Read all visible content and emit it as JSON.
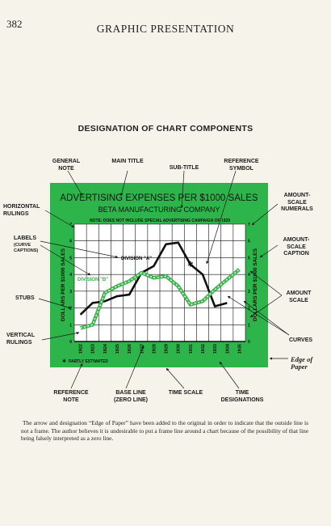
{
  "page": {
    "number": "382",
    "header": "GRAPHIC PRESENTATION",
    "diagram_title": "DESIGNATION OF CHART COMPONENTS",
    "caption": "The arrow and designation “Edge of Paper” have been added to the original in order to indicate that the outside line is not a frame. The author believes it is undesirable to put a frame line around a chart because of the possibility of that line being falsely interpreted as a zero line."
  },
  "colors": {
    "panel_green": "#2db54b",
    "curve_a": "#111111",
    "curve_b": "#3fb34f",
    "paper": "#ffffff"
  },
  "callouts": {
    "general_note": "GENERAL NOTE",
    "main_title": "MAIN TITLE",
    "sub_title": "SUB-TITLE",
    "reference_symbol": "REFERENCE SYMBOL",
    "horizontal_rulings": "HORIZONTAL RULINGS",
    "labels": "LABELS",
    "labels_sub": "(CURVE CAPTIONS)",
    "amount_scale_numerals": "AMOUNT- SCALE NUMERALS",
    "amount_scale_caption": "AMOUNT- SCALE CAPTION",
    "stubs": "STUBS",
    "amount_scale": "AMOUNT SCALE",
    "vertical_rulings": "VERTICAL RULINGS",
    "curves": "CURVES",
    "edge_of_paper": "Edge of Paper",
    "reference_note": "REFERENCE NOTE",
    "base_line": "BASE LINE (ZERO LINE)",
    "time_scale": "TIME SCALE",
    "time_designations": "TIME DESIGNATIONS"
  },
  "chart_data": {
    "type": "line",
    "title": "ADVERTISING EXPENSES PER $1000 SALES",
    "subtitle": "BETA MANUFACTURING COMPANY",
    "note": "NOTE: DOES NOT INCLUDE SPECIAL ADVERTISING CAMPAIGN OF 1929",
    "ylabel": "DOLLARS PER $1000 SALES",
    "ylim": [
      0,
      7
    ],
    "yticks": [
      0,
      1,
      2,
      3,
      4,
      5,
      6,
      7
    ],
    "x": [
      "1922",
      "1923",
      "1924",
      "1925",
      "1926",
      "1927",
      "1928",
      "1929",
      "1930",
      "1931",
      "1932",
      "1933",
      "1934",
      "1935"
    ],
    "x_display": [
      "1922",
      "1923",
      "1924",
      "1925",
      "1926",
      "1927",
      "1928",
      "1929",
      "1930",
      "1931",
      "1932",
      "1933",
      "1934",
      "1935"
    ],
    "series": [
      {
        "name": "DIVISION \"A\"",
        "style": "solid",
        "values": [
          1.6,
          2.3,
          2.4,
          2.7,
          2.8,
          4.1,
          4.5,
          5.8,
          5.9,
          4.6,
          4.0,
          2.1,
          2.3,
          null
        ]
      },
      {
        "name": "DIVISION \"B\"",
        "style": "dashed",
        "values": [
          0.8,
          1.0,
          2.9,
          3.3,
          3.6,
          4.1,
          3.8,
          3.9,
          3.3,
          2.2,
          2.4,
          3.1,
          3.7,
          4.3
        ]
      }
    ],
    "reference_symbol_at": {
      "x": "1931",
      "value": 4.6
    },
    "reference_note": "PARTLY ESTIMATED",
    "grid": true
  }
}
